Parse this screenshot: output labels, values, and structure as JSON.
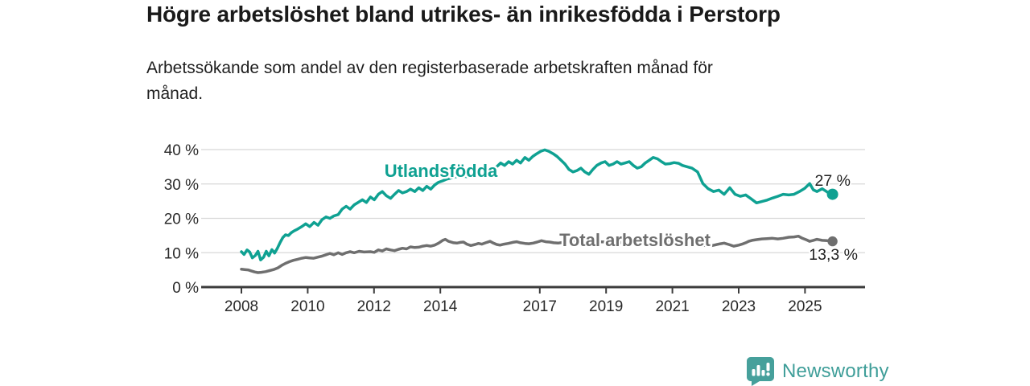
{
  "footer": {
    "brand": "Newsworthy"
  },
  "colors": {
    "accent_teal": "#0fa192",
    "line_gray": "#6f6f6f",
    "grid": "#d8d8d8",
    "axis": "#3c3c3c",
    "tick_text": "#2a2a2a",
    "end_label_text": "#1f1f1f",
    "logo_teal": "#46a09b",
    "logo_text": "#3f9e99"
  },
  "chart_data": {
    "type": "line",
    "title": "Högre arbetslöshet bland utrikes- än inrikesfödda i Perstorp",
    "subtitle_lines": [
      "Arbetssökande som andel av den registerbaserade arbetskraften månad för",
      "månad."
    ],
    "xlabel": "",
    "ylabel": "",
    "ylim": [
      0,
      40
    ],
    "x_range_years": [
      2008,
      2025.83
    ],
    "grid": "horizontal",
    "legend_position": "inline-labels",
    "y_ticks": {
      "values": [
        0,
        10,
        20,
        30,
        40
      ],
      "labels": [
        "0 %",
        "10 %",
        "20 %",
        "30 %",
        "40 %"
      ]
    },
    "x_ticks": {
      "years": [
        2008,
        2010,
        2012,
        2014,
        2017,
        2019,
        2021,
        2023,
        2025
      ],
      "labels": [
        "2008",
        "2010",
        "2012",
        "2014",
        "2017",
        "2019",
        "2021",
        "2023",
        "2025"
      ]
    },
    "series": [
      {
        "name": "Utlandsfödda",
        "color": "#0fa192",
        "end_label": "27 %",
        "end_value": 27.0,
        "points": [
          [
            2008.0,
            10.3
          ],
          [
            2008.08,
            9.5
          ],
          [
            2008.17,
            10.8
          ],
          [
            2008.25,
            10.2
          ],
          [
            2008.33,
            8.5
          ],
          [
            2008.42,
            9.2
          ],
          [
            2008.5,
            10.4
          ],
          [
            2008.58,
            7.9
          ],
          [
            2008.67,
            8.7
          ],
          [
            2008.75,
            10.4
          ],
          [
            2008.83,
            9.1
          ],
          [
            2008.92,
            10.9
          ],
          [
            2009.0,
            9.9
          ],
          [
            2009.08,
            11.2
          ],
          [
            2009.17,
            13.0
          ],
          [
            2009.25,
            14.4
          ],
          [
            2009.33,
            15.2
          ],
          [
            2009.42,
            15.0
          ],
          [
            2009.5,
            15.8
          ],
          [
            2009.58,
            16.3
          ],
          [
            2009.7,
            16.9
          ],
          [
            2009.82,
            17.6
          ],
          [
            2009.94,
            18.4
          ],
          [
            2010.06,
            17.6
          ],
          [
            2010.19,
            18.8
          ],
          [
            2010.31,
            18.0
          ],
          [
            2010.43,
            19.6
          ],
          [
            2010.55,
            20.4
          ],
          [
            2010.67,
            20.0
          ],
          [
            2010.79,
            20.7
          ],
          [
            2010.92,
            21.1
          ],
          [
            2011.04,
            22.7
          ],
          [
            2011.16,
            23.5
          ],
          [
            2011.28,
            22.7
          ],
          [
            2011.4,
            23.9
          ],
          [
            2011.52,
            24.6
          ],
          [
            2011.65,
            25.4
          ],
          [
            2011.77,
            24.6
          ],
          [
            2011.89,
            26.2
          ],
          [
            2012.01,
            25.4
          ],
          [
            2012.13,
            27.0
          ],
          [
            2012.25,
            27.8
          ],
          [
            2012.37,
            26.6
          ],
          [
            2012.5,
            25.8
          ],
          [
            2012.62,
            27.0
          ],
          [
            2012.74,
            28.1
          ],
          [
            2012.86,
            27.4
          ],
          [
            2012.98,
            27.8
          ],
          [
            2013.1,
            28.5
          ],
          [
            2013.23,
            27.8
          ],
          [
            2013.35,
            28.9
          ],
          [
            2013.47,
            28.1
          ],
          [
            2013.59,
            29.3
          ],
          [
            2013.71,
            28.5
          ],
          [
            2013.83,
            29.7
          ],
          [
            2013.95,
            30.5
          ],
          [
            2014.07,
            30.9
          ],
          [
            2014.19,
            31.4
          ],
          [
            2014.4,
            31.9
          ],
          [
            2014.6,
            32.4
          ],
          [
            2014.8,
            32.1
          ],
          [
            2015.0,
            32.9
          ],
          [
            2015.2,
            33.6
          ],
          [
            2015.4,
            34.1
          ],
          [
            2015.55,
            34.5
          ],
          [
            2015.7,
            35.0
          ],
          [
            2015.82,
            36.1
          ],
          [
            2015.94,
            35.4
          ],
          [
            2016.06,
            36.5
          ],
          [
            2016.18,
            35.8
          ],
          [
            2016.3,
            36.9
          ],
          [
            2016.42,
            36.1
          ],
          [
            2016.55,
            37.7
          ],
          [
            2016.67,
            36.9
          ],
          [
            2016.79,
            38.0
          ],
          [
            2016.91,
            38.8
          ],
          [
            2017.03,
            39.5
          ],
          [
            2017.15,
            39.9
          ],
          [
            2017.27,
            39.5
          ],
          [
            2017.4,
            38.8
          ],
          [
            2017.52,
            38.0
          ],
          [
            2017.64,
            36.9
          ],
          [
            2017.76,
            35.8
          ],
          [
            2017.88,
            34.2
          ],
          [
            2018.0,
            33.5
          ],
          [
            2018.12,
            33.9
          ],
          [
            2018.24,
            34.6
          ],
          [
            2018.36,
            33.5
          ],
          [
            2018.48,
            32.8
          ],
          [
            2018.6,
            34.2
          ],
          [
            2018.72,
            35.4
          ],
          [
            2018.85,
            36.1
          ],
          [
            2018.97,
            36.5
          ],
          [
            2019.09,
            35.4
          ],
          [
            2019.21,
            35.8
          ],
          [
            2019.33,
            36.5
          ],
          [
            2019.45,
            35.8
          ],
          [
            2019.57,
            36.1
          ],
          [
            2019.7,
            36.5
          ],
          [
            2019.82,
            35.4
          ],
          [
            2019.94,
            34.6
          ],
          [
            2020.06,
            35.0
          ],
          [
            2020.18,
            36.1
          ],
          [
            2020.3,
            36.9
          ],
          [
            2020.42,
            37.7
          ],
          [
            2020.55,
            37.3
          ],
          [
            2020.67,
            36.5
          ],
          [
            2020.79,
            35.8
          ],
          [
            2020.92,
            35.9
          ],
          [
            2021.05,
            36.2
          ],
          [
            2021.19,
            36.0
          ],
          [
            2021.3,
            35.4
          ],
          [
            2021.45,
            35.0
          ],
          [
            2021.59,
            34.6
          ],
          [
            2021.76,
            33.5
          ],
          [
            2021.92,
            30.1
          ],
          [
            2022.08,
            28.6
          ],
          [
            2022.24,
            27.8
          ],
          [
            2022.4,
            28.2
          ],
          [
            2022.56,
            27.0
          ],
          [
            2022.73,
            28.9
          ],
          [
            2022.89,
            27.0
          ],
          [
            2023.05,
            26.4
          ],
          [
            2023.21,
            26.8
          ],
          [
            2023.37,
            25.7
          ],
          [
            2023.54,
            24.5
          ],
          [
            2023.7,
            24.9
          ],
          [
            2023.86,
            25.3
          ],
          [
            2024.02,
            25.9
          ],
          [
            2024.18,
            26.4
          ],
          [
            2024.34,
            27.0
          ],
          [
            2024.51,
            26.8
          ],
          [
            2024.67,
            27.0
          ],
          [
            2024.83,
            27.8
          ],
          [
            2024.99,
            28.7
          ],
          [
            2025.14,
            30.1
          ],
          [
            2025.25,
            28.3
          ],
          [
            2025.36,
            27.8
          ],
          [
            2025.52,
            28.6
          ],
          [
            2025.68,
            27.6
          ],
          [
            2025.83,
            27.0
          ]
        ]
      },
      {
        "name": "Total arbetslöshet",
        "color": "#6f6f6f",
        "end_label": "13,3 %",
        "end_value": 13.3,
        "points": [
          [
            2008.0,
            5.2
          ],
          [
            2008.1,
            5.1
          ],
          [
            2008.2,
            5.0
          ],
          [
            2008.3,
            4.7
          ],
          [
            2008.4,
            4.4
          ],
          [
            2008.5,
            4.2
          ],
          [
            2008.6,
            4.3
          ],
          [
            2008.73,
            4.5
          ],
          [
            2008.85,
            4.8
          ],
          [
            2008.97,
            5.1
          ],
          [
            2009.1,
            5.6
          ],
          [
            2009.21,
            6.3
          ],
          [
            2009.33,
            6.9
          ],
          [
            2009.45,
            7.4
          ],
          [
            2009.57,
            7.8
          ],
          [
            2009.7,
            8.1
          ],
          [
            2009.82,
            8.4
          ],
          [
            2009.94,
            8.6
          ],
          [
            2010.06,
            8.5
          ],
          [
            2010.18,
            8.4
          ],
          [
            2010.3,
            8.7
          ],
          [
            2010.43,
            9.0
          ],
          [
            2010.55,
            9.4
          ],
          [
            2010.67,
            9.8
          ],
          [
            2010.79,
            9.4
          ],
          [
            2010.92,
            10.0
          ],
          [
            2011.04,
            9.5
          ],
          [
            2011.16,
            10.0
          ],
          [
            2011.28,
            10.3
          ],
          [
            2011.4,
            10.0
          ],
          [
            2011.55,
            10.4
          ],
          [
            2011.7,
            10.2
          ],
          [
            2011.89,
            10.3
          ],
          [
            2012.01,
            10.1
          ],
          [
            2012.13,
            10.8
          ],
          [
            2012.25,
            10.5
          ],
          [
            2012.37,
            11.1
          ],
          [
            2012.5,
            10.8
          ],
          [
            2012.62,
            10.6
          ],
          [
            2012.74,
            11.0
          ],
          [
            2012.86,
            11.3
          ],
          [
            2012.98,
            11.1
          ],
          [
            2013.1,
            11.7
          ],
          [
            2013.23,
            11.5
          ],
          [
            2013.35,
            11.6
          ],
          [
            2013.47,
            11.9
          ],
          [
            2013.59,
            12.1
          ],
          [
            2013.71,
            11.9
          ],
          [
            2013.83,
            12.2
          ],
          [
            2013.95,
            12.8
          ],
          [
            2014.07,
            13.6
          ],
          [
            2014.15,
            13.9
          ],
          [
            2014.25,
            13.3
          ],
          [
            2014.4,
            12.9
          ],
          [
            2014.5,
            12.8
          ],
          [
            2014.6,
            13.0
          ],
          [
            2014.7,
            13.1
          ],
          [
            2014.8,
            12.5
          ],
          [
            2014.92,
            12.1
          ],
          [
            2015.05,
            12.4
          ],
          [
            2015.15,
            12.7
          ],
          [
            2015.25,
            12.5
          ],
          [
            2015.4,
            13.0
          ],
          [
            2015.5,
            13.3
          ],
          [
            2015.6,
            12.8
          ],
          [
            2015.7,
            12.4
          ],
          [
            2015.8,
            12.2
          ],
          [
            2015.92,
            12.5
          ],
          [
            2016.05,
            12.7
          ],
          [
            2016.18,
            13.0
          ],
          [
            2016.3,
            13.2
          ],
          [
            2016.42,
            12.9
          ],
          [
            2016.55,
            12.7
          ],
          [
            2016.67,
            12.6
          ],
          [
            2016.8,
            12.8
          ],
          [
            2016.92,
            13.1
          ],
          [
            2017.05,
            13.5
          ],
          [
            2017.18,
            13.2
          ],
          [
            2017.3,
            13.1
          ],
          [
            2017.42,
            12.9
          ],
          [
            2017.55,
            12.8
          ],
          [
            2017.7,
            13.0
          ],
          [
            2017.85,
            13.2
          ],
          [
            2018.0,
            13.3
          ],
          [
            2018.2,
            13.1
          ],
          [
            2018.4,
            12.9
          ],
          [
            2018.6,
            13.0
          ],
          [
            2018.8,
            13.2
          ],
          [
            2019.0,
            13.1
          ],
          [
            2019.2,
            12.9
          ],
          [
            2019.4,
            13.0
          ],
          [
            2019.6,
            12.8
          ],
          [
            2019.8,
            13.0
          ],
          [
            2020.0,
            13.2
          ],
          [
            2020.2,
            13.6
          ],
          [
            2020.4,
            14.0
          ],
          [
            2020.6,
            13.8
          ],
          [
            2020.8,
            13.6
          ],
          [
            2021.0,
            13.4
          ],
          [
            2021.2,
            13.1
          ],
          [
            2021.4,
            12.8
          ],
          [
            2021.6,
            12.5
          ],
          [
            2021.8,
            12.3
          ],
          [
            2022.0,
            12.1
          ],
          [
            2022.16,
            12.0
          ],
          [
            2022.3,
            12.3
          ],
          [
            2022.45,
            12.6
          ],
          [
            2022.56,
            12.8
          ],
          [
            2022.7,
            12.4
          ],
          [
            2022.85,
            11.9
          ],
          [
            2023.0,
            12.2
          ],
          [
            2023.1,
            12.5
          ],
          [
            2023.21,
            12.9
          ],
          [
            2023.3,
            13.3
          ],
          [
            2023.4,
            13.6
          ],
          [
            2023.54,
            13.8
          ],
          [
            2023.7,
            14.0
          ],
          [
            2023.86,
            14.1
          ],
          [
            2024.02,
            14.2
          ],
          [
            2024.18,
            14.0
          ],
          [
            2024.34,
            14.2
          ],
          [
            2024.51,
            14.5
          ],
          [
            2024.67,
            14.6
          ],
          [
            2024.8,
            14.8
          ],
          [
            2024.92,
            14.2
          ],
          [
            2025.05,
            13.7
          ],
          [
            2025.14,
            13.3
          ],
          [
            2025.25,
            13.6
          ],
          [
            2025.36,
            13.9
          ],
          [
            2025.52,
            13.6
          ],
          [
            2025.68,
            13.5
          ],
          [
            2025.83,
            13.3
          ]
        ]
      }
    ]
  }
}
